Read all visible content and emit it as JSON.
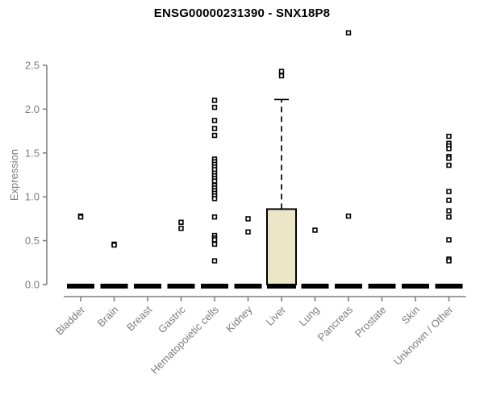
{
  "chart_data": {
    "type": "box",
    "title": "ENSG00000231390 - SNX18P8",
    "ylabel": "Expression",
    "xlabel": "",
    "ylim": [
      0,
      2.5
    ],
    "yticks": [
      0,
      0.5,
      1,
      1.5,
      2,
      2.5
    ],
    "ytick_labels": [
      "0.0",
      "0.5",
      "1.0",
      "1.5",
      "2.0",
      "2.5"
    ],
    "legend": "none",
    "grid": "off",
    "categories": [
      "Bladder",
      "Brain",
      "Breast",
      "Gastric",
      "Hematopoietic cells",
      "Kidney",
      "Liver",
      "Lung",
      "Pancreas",
      "Prostate",
      "Skin",
      "Unknown / Other"
    ],
    "boxes": [
      {
        "category": "Bladder",
        "q1": 0,
        "median": 0,
        "q3": 0,
        "whisker_low": 0,
        "whisker_high": 0,
        "outliers": [
          0.78,
          0.77
        ]
      },
      {
        "category": "Brain",
        "q1": 0,
        "median": 0,
        "q3": 0,
        "whisker_low": 0,
        "whisker_high": 0,
        "outliers": [
          0.46,
          0.45
        ]
      },
      {
        "category": "Breast",
        "q1": 0,
        "median": 0,
        "q3": 0,
        "whisker_low": 0,
        "whisker_high": 0,
        "outliers": []
      },
      {
        "category": "Gastric",
        "q1": 0,
        "median": 0,
        "q3": 0,
        "whisker_low": 0,
        "whisker_high": 0,
        "outliers": [
          0.71,
          0.64
        ]
      },
      {
        "category": "Hematopoietic cells",
        "q1": 0,
        "median": 0,
        "q3": 0,
        "whisker_low": 0,
        "whisker_high": 0,
        "outliers": [
          2.1,
          2.02,
          1.87,
          1.78,
          1.7,
          1.43,
          1.4,
          1.37,
          1.34,
          1.31,
          1.27,
          1.24,
          1.21,
          1.18,
          1.13,
          1.1,
          1.07,
          1.04,
          1.01,
          0.98,
          0.77,
          0.56,
          0.53,
          0.51,
          0.46,
          0.27
        ]
      },
      {
        "category": "Kidney",
        "q1": 0,
        "median": 0,
        "q3": 0,
        "whisker_low": 0,
        "whisker_high": 0,
        "outliers": [
          0.75,
          0.6
        ]
      },
      {
        "category": "Liver",
        "q1": 0,
        "median": 0,
        "q3": 0.86,
        "whisker_low": 0,
        "whisker_high": 2.11,
        "outliers": [
          2.43,
          2.38
        ]
      },
      {
        "category": "Lung",
        "q1": 0,
        "median": 0,
        "q3": 0,
        "whisker_low": 0,
        "whisker_high": 0,
        "outliers": [
          0.62
        ]
      },
      {
        "category": "Pancreas",
        "q1": 0,
        "median": 0,
        "q3": 0,
        "whisker_low": 0,
        "whisker_high": 0,
        "outliers": [
          2.87,
          0.78
        ]
      },
      {
        "category": "Prostate",
        "q1": 0,
        "median": 0,
        "q3": 0,
        "whisker_low": 0,
        "whisker_high": 0,
        "outliers": []
      },
      {
        "category": "Skin",
        "q1": 0,
        "median": 0,
        "q3": 0,
        "whisker_low": 0,
        "whisker_high": 0,
        "outliers": []
      },
      {
        "category": "Unknown / Other",
        "q1": 0,
        "median": 0,
        "q3": 0,
        "whisker_low": 0,
        "whisker_high": 0,
        "outliers": [
          1.69,
          1.61,
          1.58,
          1.55,
          1.46,
          1.44,
          1.36,
          1.06,
          0.96,
          0.84,
          0.77,
          0.51,
          0.29,
          0.27
        ]
      }
    ],
    "colors": {
      "box_fill": "#ece6c9",
      "box_border": "#000000",
      "median_line": "#000000",
      "whisker": "#000000",
      "marker": "#000000",
      "marker_fill": "#ffffff",
      "axis_line": "#808080",
      "tick_text": "#7d7d7d",
      "title_text": "#000000"
    }
  }
}
